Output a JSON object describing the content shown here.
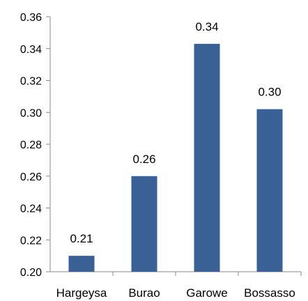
{
  "chart_data": {
    "type": "bar",
    "title": "",
    "xlabel": "",
    "ylabel": "",
    "categories": [
      "Hargeysa",
      "Burao",
      "Garowe",
      "Bossasso"
    ],
    "values": [
      0.21,
      0.26,
      0.343,
      0.302
    ],
    "data_labels": [
      "0.21",
      "0.26",
      "0.34",
      "0.30"
    ],
    "ylim": [
      0.2,
      0.36
    ],
    "yticks": [
      "0.20",
      "0.22",
      "0.24",
      "0.26",
      "0.28",
      "0.30",
      "0.32",
      "0.34",
      "0.36"
    ],
    "bar_color": "#3a6196",
    "grid": false,
    "legend": "none"
  }
}
